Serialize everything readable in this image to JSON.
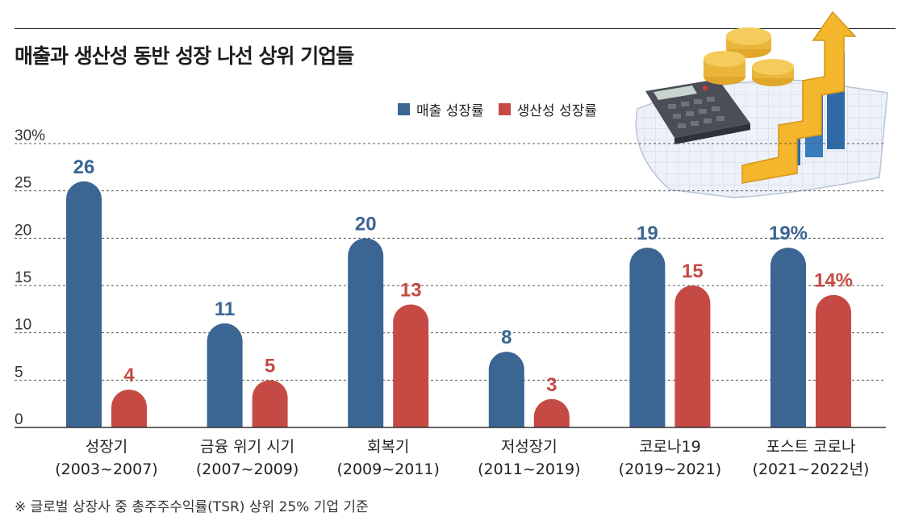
{
  "title": "매출과 생산성 동반 성장 나선 상위 기업들",
  "legend": [
    {
      "label": "매출 성장률",
      "color": "#3b6592"
    },
    {
      "label": "생산성 성장률",
      "color": "#c64a44"
    }
  ],
  "footnote": "※ 글로벌 상장사 중 총주주수익률(TSR) 상위 25% 기업 기준",
  "chart_data": {
    "type": "bar",
    "categories": [
      [
        "성장기",
        "(2003~2007)"
      ],
      [
        "금융 위기 시기",
        "(2007~2009)"
      ],
      [
        "회복기",
        "(2009~2011)"
      ],
      [
        "저성장기",
        "(2011~2019)"
      ],
      [
        "코로나19",
        "(2019~2021)"
      ],
      [
        "포스트 코로나",
        "(2021~2022년)"
      ]
    ],
    "series": [
      {
        "name": "매출 성장률",
        "color": "#3b6592",
        "values": [
          26,
          11,
          20,
          8,
          19,
          19
        ],
        "labels": [
          "26",
          "11",
          "20",
          "8",
          "19",
          "19%"
        ]
      },
      {
        "name": "생산성 성장률",
        "color": "#c64a44",
        "values": [
          4,
          5,
          13,
          3,
          15,
          14
        ],
        "labels": [
          "4",
          "5",
          "13",
          "3",
          "15",
          "14%"
        ]
      }
    ],
    "yticks": [
      "0",
      "5",
      "10",
      "15",
      "20",
      "25",
      "30%"
    ],
    "ylim": [
      0,
      30
    ],
    "grid": true,
    "legend_position": "top-right"
  }
}
